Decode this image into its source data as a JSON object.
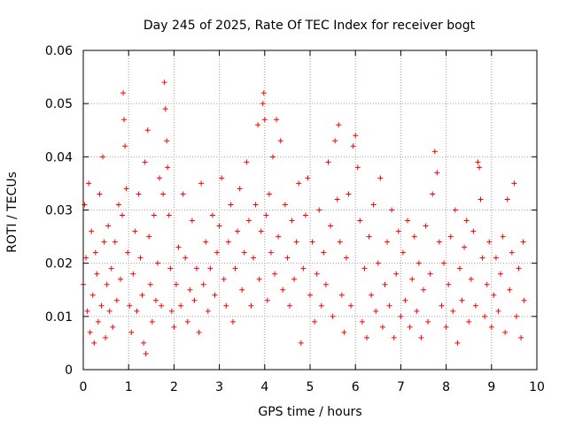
{
  "chart_data": {
    "type": "scatter",
    "title": "Day 245 of 2025, Rate Of TEC Index for receiver bogt",
    "xlabel": "GPS time / hours",
    "ylabel": "ROTI / TECUs",
    "xlim": [
      0,
      10
    ],
    "ylim": [
      0,
      0.06
    ],
    "x_ticks": [
      "0",
      "1",
      "2",
      "3",
      "4",
      "5",
      "6",
      "7",
      "8",
      "9",
      "10"
    ],
    "y_ticks": [
      "0",
      "0.01",
      "0.02",
      "0.03",
      "0.04",
      "0.05",
      "0.06"
    ],
    "grid": true,
    "legend": "none",
    "marker": "plus",
    "color": "#ff0000",
    "series": [
      {
        "points": [
          [
            0.0,
            0.016
          ],
          [
            0.03,
            0.031
          ],
          [
            0.06,
            0.021
          ],
          [
            0.09,
            0.011
          ],
          [
            0.12,
            0.035
          ],
          [
            0.15,
            0.007
          ],
          [
            0.18,
            0.026
          ],
          [
            0.21,
            0.014
          ],
          [
            0.24,
            0.005
          ],
          [
            0.27,
            0.022
          ],
          [
            0.3,
            0.018
          ],
          [
            0.33,
            0.009
          ],
          [
            0.36,
            0.033
          ],
          [
            0.4,
            0.012
          ],
          [
            0.43,
            0.04
          ],
          [
            0.46,
            0.024
          ],
          [
            0.49,
            0.006
          ],
          [
            0.52,
            0.016
          ],
          [
            0.55,
            0.027
          ],
          [
            0.58,
            0.011
          ],
          [
            0.62,
            0.019
          ],
          [
            0.65,
            0.008
          ],
          [
            0.7,
            0.024
          ],
          [
            0.74,
            0.013
          ],
          [
            0.78,
            0.031
          ],
          [
            0.82,
            0.017
          ],
          [
            0.86,
            0.029
          ],
          [
            0.88,
            0.052
          ],
          [
            0.9,
            0.047
          ],
          [
            0.92,
            0.042
          ],
          [
            0.95,
            0.034
          ],
          [
            0.98,
            0.022
          ],
          [
            1.02,
            0.012
          ],
          [
            1.06,
            0.007
          ],
          [
            1.1,
            0.018
          ],
          [
            1.14,
            0.026
          ],
          [
            1.18,
            0.011
          ],
          [
            1.22,
            0.033
          ],
          [
            1.26,
            0.021
          ],
          [
            1.3,
            0.014
          ],
          [
            1.33,
            0.005
          ],
          [
            1.36,
            0.039
          ],
          [
            1.38,
            0.003
          ],
          [
            1.42,
            0.045
          ],
          [
            1.45,
            0.025
          ],
          [
            1.48,
            0.016
          ],
          [
            1.52,
            0.009
          ],
          [
            1.56,
            0.029
          ],
          [
            1.6,
            0.013
          ],
          [
            1.64,
            0.02
          ],
          [
            1.68,
            0.036
          ],
          [
            1.72,
            0.012
          ],
          [
            1.76,
            0.033
          ],
          [
            1.79,
            0.054
          ],
          [
            1.81,
            0.049
          ],
          [
            1.84,
            0.043
          ],
          [
            1.86,
            0.038
          ],
          [
            1.89,
            0.029
          ],
          [
            1.92,
            0.019
          ],
          [
            1.95,
            0.011
          ],
          [
            2.0,
            0.008
          ],
          [
            2.05,
            0.016
          ],
          [
            2.1,
            0.023
          ],
          [
            2.15,
            0.012
          ],
          [
            2.2,
            0.033
          ],
          [
            2.25,
            0.021
          ],
          [
            2.3,
            0.009
          ],
          [
            2.35,
            0.015
          ],
          [
            2.4,
            0.028
          ],
          [
            2.45,
            0.013
          ],
          [
            2.5,
            0.019
          ],
          [
            2.55,
            0.007
          ],
          [
            2.6,
            0.035
          ],
          [
            2.65,
            0.016
          ],
          [
            2.7,
            0.024
          ],
          [
            2.75,
            0.011
          ],
          [
            2.8,
            0.019
          ],
          [
            2.85,
            0.029
          ],
          [
            2.9,
            0.014
          ],
          [
            2.95,
            0.022
          ],
          [
            3.0,
            0.027
          ],
          [
            3.05,
            0.036
          ],
          [
            3.1,
            0.017
          ],
          [
            3.15,
            0.012
          ],
          [
            3.2,
            0.024
          ],
          [
            3.25,
            0.031
          ],
          [
            3.3,
            0.009
          ],
          [
            3.35,
            0.019
          ],
          [
            3.4,
            0.026
          ],
          [
            3.45,
            0.034
          ],
          [
            3.5,
            0.015
          ],
          [
            3.55,
            0.022
          ],
          [
            3.6,
            0.039
          ],
          [
            3.65,
            0.028
          ],
          [
            3.7,
            0.012
          ],
          [
            3.75,
            0.021
          ],
          [
            3.8,
            0.031
          ],
          [
            3.85,
            0.046
          ],
          [
            3.88,
            0.017
          ],
          [
            3.92,
            0.026
          ],
          [
            3.96,
            0.05
          ],
          [
            3.98,
            0.052
          ],
          [
            4.0,
            0.047
          ],
          [
            4.03,
            0.029
          ],
          [
            4.06,
            0.013
          ],
          [
            4.1,
            0.033
          ],
          [
            4.14,
            0.022
          ],
          [
            4.18,
            0.04
          ],
          [
            4.22,
            0.018
          ],
          [
            4.26,
            0.047
          ],
          [
            4.3,
            0.025
          ],
          [
            4.35,
            0.043
          ],
          [
            4.4,
            0.015
          ],
          [
            4.45,
            0.031
          ],
          [
            4.5,
            0.021
          ],
          [
            4.55,
            0.012
          ],
          [
            4.6,
            0.028
          ],
          [
            4.65,
            0.017
          ],
          [
            4.7,
            0.024
          ],
          [
            4.75,
            0.035
          ],
          [
            4.8,
            0.005
          ],
          [
            4.85,
            0.019
          ],
          [
            4.9,
            0.029
          ],
          [
            4.95,
            0.036
          ],
          [
            5.0,
            0.014
          ],
          [
            5.05,
            0.024
          ],
          [
            5.1,
            0.009
          ],
          [
            5.15,
            0.018
          ],
          [
            5.2,
            0.03
          ],
          [
            5.25,
            0.012
          ],
          [
            5.3,
            0.022
          ],
          [
            5.35,
            0.016
          ],
          [
            5.4,
            0.039
          ],
          [
            5.45,
            0.027
          ],
          [
            5.5,
            0.01
          ],
          [
            5.55,
            0.043
          ],
          [
            5.6,
            0.032
          ],
          [
            5.63,
            0.046
          ],
          [
            5.66,
            0.024
          ],
          [
            5.7,
            0.014
          ],
          [
            5.75,
            0.007
          ],
          [
            5.8,
            0.021
          ],
          [
            5.85,
            0.033
          ],
          [
            5.9,
            0.012
          ],
          [
            5.95,
            0.042
          ],
          [
            6.0,
            0.044
          ],
          [
            6.05,
            0.038
          ],
          [
            6.1,
            0.028
          ],
          [
            6.15,
            0.009
          ],
          [
            6.2,
            0.019
          ],
          [
            6.25,
            0.006
          ],
          [
            6.3,
            0.025
          ],
          [
            6.35,
            0.014
          ],
          [
            6.4,
            0.031
          ],
          [
            6.45,
            0.011
          ],
          [
            6.5,
            0.02
          ],
          [
            6.55,
            0.036
          ],
          [
            6.6,
            0.008
          ],
          [
            6.65,
            0.016
          ],
          [
            6.7,
            0.024
          ],
          [
            6.75,
            0.012
          ],
          [
            6.8,
            0.03
          ],
          [
            6.85,
            0.006
          ],
          [
            6.9,
            0.018
          ],
          [
            6.95,
            0.026
          ],
          [
            7.0,
            0.01
          ],
          [
            7.05,
            0.022
          ],
          [
            7.1,
            0.013
          ],
          [
            7.15,
            0.028
          ],
          [
            7.2,
            0.008
          ],
          [
            7.25,
            0.017
          ],
          [
            7.3,
            0.025
          ],
          [
            7.35,
            0.011
          ],
          [
            7.4,
            0.02
          ],
          [
            7.45,
            0.006
          ],
          [
            7.5,
            0.015
          ],
          [
            7.55,
            0.027
          ],
          [
            7.6,
            0.009
          ],
          [
            7.65,
            0.018
          ],
          [
            7.7,
            0.033
          ],
          [
            7.75,
            0.041
          ],
          [
            7.8,
            0.037
          ],
          [
            7.85,
            0.024
          ],
          [
            7.9,
            0.012
          ],
          [
            7.95,
            0.02
          ],
          [
            8.0,
            0.008
          ],
          [
            8.05,
            0.016
          ],
          [
            8.1,
            0.025
          ],
          [
            8.15,
            0.011
          ],
          [
            8.2,
            0.03
          ],
          [
            8.25,
            0.005
          ],
          [
            8.3,
            0.019
          ],
          [
            8.35,
            0.013
          ],
          [
            8.4,
            0.023
          ],
          [
            8.45,
            0.028
          ],
          [
            8.5,
            0.009
          ],
          [
            8.55,
            0.017
          ],
          [
            8.6,
            0.026
          ],
          [
            8.65,
            0.012
          ],
          [
            8.7,
            0.039
          ],
          [
            8.73,
            0.038
          ],
          [
            8.76,
            0.032
          ],
          [
            8.8,
            0.021
          ],
          [
            8.85,
            0.01
          ],
          [
            8.9,
            0.016
          ],
          [
            8.95,
            0.024
          ],
          [
            9.0,
            0.008
          ],
          [
            9.05,
            0.014
          ],
          [
            9.1,
            0.021
          ],
          [
            9.15,
            0.011
          ],
          [
            9.2,
            0.018
          ],
          [
            9.25,
            0.025
          ],
          [
            9.3,
            0.007
          ],
          [
            9.35,
            0.032
          ],
          [
            9.4,
            0.015
          ],
          [
            9.45,
            0.022
          ],
          [
            9.5,
            0.035
          ],
          [
            9.55,
            0.01
          ],
          [
            9.6,
            0.019
          ],
          [
            9.65,
            0.006
          ],
          [
            9.7,
            0.024
          ],
          [
            9.72,
            0.013
          ]
        ]
      }
    ]
  }
}
